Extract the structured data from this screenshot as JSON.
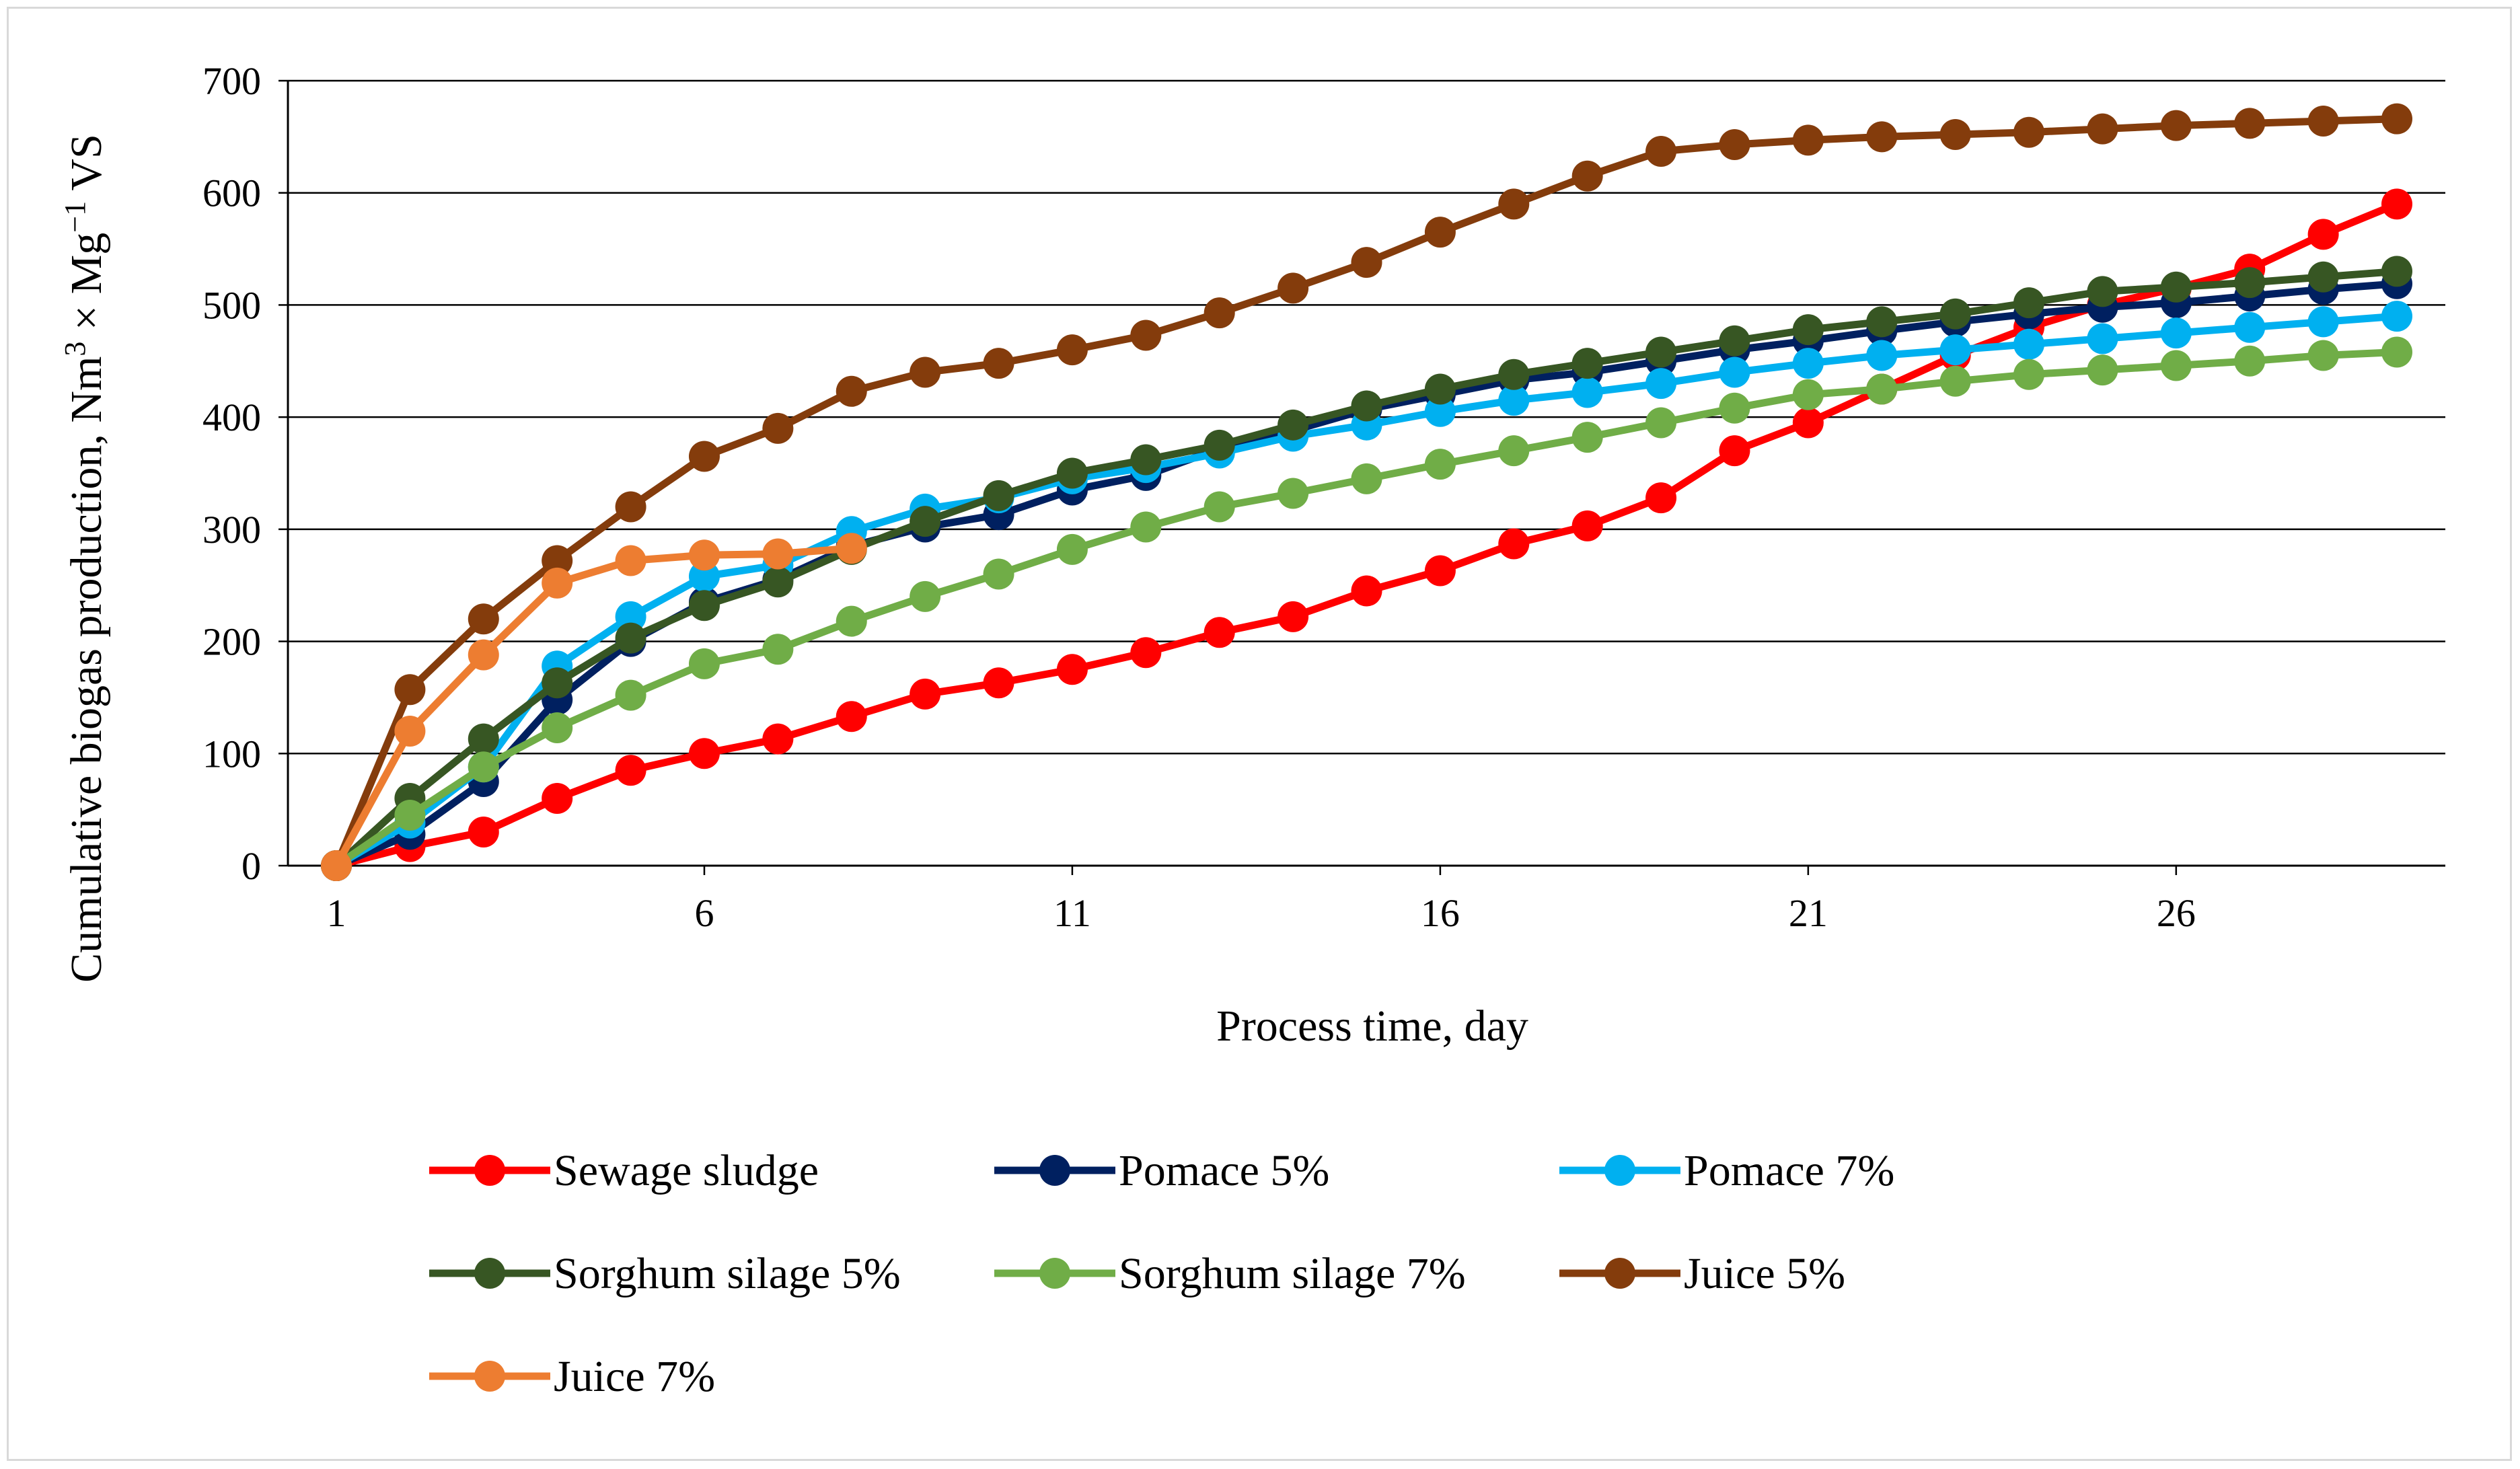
{
  "chart_data": {
    "type": "line",
    "title": "",
    "xlabel": "Process time, day",
    "ylabel_parts": {
      "before_sup1": "Cumulative biogas production, Nm",
      "sup1": "3",
      "mid": " × Mg",
      "sup2": "−1",
      "after": " VS"
    },
    "xlim": [
      1,
      29
    ],
    "ylim": [
      0,
      700
    ],
    "x_ticks": [
      1,
      6,
      11,
      16,
      21,
      26
    ],
    "y_ticks": [
      0,
      100,
      200,
      300,
      400,
      500,
      600,
      700
    ],
    "grid": "horizontal",
    "legend_placement": "bottom",
    "series": [
      {
        "name": "Sewage sludge",
        "color": "#ff0000",
        "x": [
          1,
          2,
          3,
          4,
          5,
          6,
          7,
          8,
          9,
          10,
          11,
          12,
          13,
          14,
          15,
          16,
          17,
          18,
          19,
          20,
          21,
          22,
          23,
          24,
          25,
          26,
          27,
          28,
          29
        ],
        "values": [
          0,
          17,
          30,
          60,
          85,
          100,
          113,
          133,
          153,
          163,
          175,
          190,
          208,
          222,
          245,
          263,
          287,
          303,
          328,
          370,
          395,
          425,
          455,
          480,
          500,
          515,
          532,
          563,
          590
        ]
      },
      {
        "name": "Pomace 5%",
        "color": "#002060",
        "x": [
          1,
          2,
          3,
          4,
          5,
          6,
          7,
          8,
          9,
          10,
          11,
          12,
          13,
          14,
          15,
          16,
          17,
          18,
          19,
          20,
          21,
          22,
          23,
          24,
          25,
          26,
          27,
          28,
          29
        ],
        "values": [
          0,
          28,
          75,
          148,
          200,
          235,
          255,
          285,
          302,
          313,
          335,
          348,
          372,
          388,
          407,
          420,
          433,
          440,
          450,
          460,
          468,
          477,
          485,
          492,
          498,
          502,
          508,
          514,
          519
        ]
      },
      {
        "name": "Pomace 7%",
        "color": "#00b0f0",
        "x": [
          1,
          2,
          3,
          4,
          5,
          6,
          7,
          8,
          9,
          10,
          11,
          12,
          13,
          14,
          15,
          16,
          17,
          18,
          19,
          20,
          21,
          22,
          23,
          24,
          25,
          26,
          27,
          28,
          29
        ],
        "values": [
          0,
          38,
          88,
          178,
          222,
          258,
          268,
          298,
          318,
          328,
          345,
          355,
          368,
          383,
          393,
          405,
          415,
          422,
          430,
          440,
          448,
          455,
          460,
          465,
          470,
          475,
          480,
          485,
          490
        ]
      },
      {
        "name": "Sorghum silage 5%",
        "color": "#375623",
        "x": [
          1,
          2,
          3,
          4,
          5,
          6,
          7,
          8,
          9,
          10,
          11,
          12,
          13,
          14,
          15,
          16,
          17,
          18,
          19,
          20,
          21,
          22,
          23,
          24,
          25,
          26,
          27,
          28,
          29
        ],
        "values": [
          0,
          60,
          113,
          163,
          203,
          232,
          253,
          282,
          307,
          330,
          350,
          362,
          375,
          393,
          410,
          425,
          438,
          448,
          458,
          468,
          478,
          485,
          492,
          502,
          512,
          516,
          520,
          525,
          530
        ]
      },
      {
        "name": "Sorghum silage 7%",
        "color": "#70ad47",
        "x": [
          1,
          2,
          3,
          4,
          5,
          6,
          7,
          8,
          9,
          10,
          11,
          12,
          13,
          14,
          15,
          16,
          17,
          18,
          19,
          20,
          21,
          22,
          23,
          24,
          25,
          26,
          27,
          28,
          29
        ],
        "values": [
          0,
          45,
          88,
          123,
          152,
          180,
          193,
          218,
          240,
          260,
          282,
          302,
          320,
          332,
          345,
          358,
          370,
          382,
          395,
          408,
          420,
          425,
          432,
          438,
          442,
          446,
          450,
          455,
          458
        ]
      },
      {
        "name": "Juice 5%",
        "color": "#843c0c",
        "x": [
          1,
          2,
          3,
          4,
          5,
          6,
          7,
          8,
          9,
          10,
          11,
          12,
          13,
          14,
          15,
          16,
          17,
          18,
          19,
          20,
          21,
          22,
          23,
          24,
          25,
          26,
          27,
          28,
          29
        ],
        "values": [
          0,
          157,
          220,
          272,
          320,
          365,
          390,
          423,
          440,
          448,
          460,
          473,
          493,
          515,
          538,
          565,
          590,
          615,
          637,
          643,
          647,
          650,
          652,
          654,
          657,
          660,
          662,
          664,
          666
        ]
      },
      {
        "name": "Juice 7%",
        "color": "#ed7d31",
        "x": [
          1,
          2,
          3,
          4,
          5,
          6,
          7,
          8
        ],
        "values": [
          0,
          120,
          188,
          252,
          272,
          277,
          278,
          283
        ]
      }
    ]
  }
}
